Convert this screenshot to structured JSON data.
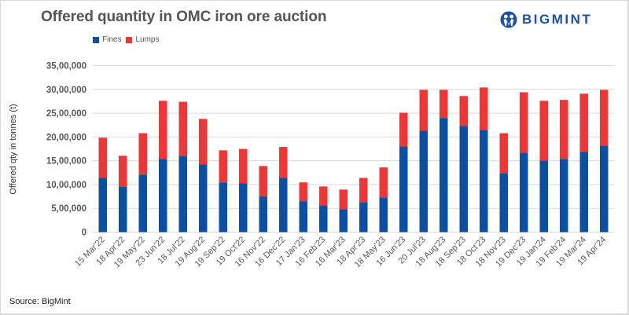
{
  "header": {
    "title": "Offered quantity in OMC iron ore auction",
    "logo_text": "BIGMINT",
    "logo_icon": "bigmint-people-icon"
  },
  "footer": {
    "source": "Source: BigMint"
  },
  "colors": {
    "fines": "#0a4fa3",
    "lumps": "#ee3636",
    "grid": "#d9d9d9",
    "logo": "#1f4fa3"
  },
  "chart_data": {
    "type": "bar",
    "stacked": true,
    "title": "Offered quantity in OMC iron ore auction",
    "xlabel": "",
    "ylabel": "Offered qty in tonnes (t)",
    "ylim": [
      0,
      3500000
    ],
    "yticks": [
      0,
      500000,
      1000000,
      1500000,
      2000000,
      2500000,
      3000000,
      3500000
    ],
    "ytick_labels": [
      "0",
      "5,00,000",
      "10,00,000",
      "15,00,000",
      "20,00,000",
      "25,00,000",
      "30,00,000",
      "35,00,000"
    ],
    "grid": true,
    "legend": {
      "placement": "top-left",
      "entries": [
        "Fines",
        "Lumps"
      ]
    },
    "categories": [
      "15 Mar'22",
      "18 Apr'22",
      "19 May'22",
      "23 Jun'22",
      "18 Jul'22",
      "19 Aug'22",
      "19 Sep'22",
      "19 Oct'22",
      "16 Nov'22",
      "16 Dec'22",
      "17 Jan'23",
      "16 Feb'23",
      "16 Mar'23",
      "18 Apr'23",
      "18 May'23",
      "16 Jun'23",
      "20 Jul'23",
      "18 Aug'23",
      "18 Sep'23",
      "18 Oct'23",
      "18 Nov'23",
      "19 Dec'23",
      "19 Jan'24",
      "19 Feb'24",
      "19 Mar'24",
      "19 Apr'24"
    ],
    "series": [
      {
        "name": "Fines",
        "values": [
          1140000,
          950000,
          1210000,
          1540000,
          1605000,
          1420000,
          1045000,
          1030000,
          750000,
          1140000,
          650000,
          565000,
          480000,
          630000,
          730000,
          1800000,
          2130000,
          2400000,
          2230000,
          2150000,
          1240000,
          1670000,
          1505000,
          1540000,
          1690000,
          1820000
        ]
      },
      {
        "name": "Lumps",
        "values": [
          845000,
          655000,
          870000,
          1220000,
          1135000,
          960000,
          675000,
          720000,
          640000,
          650000,
          395000,
          395000,
          415000,
          510000,
          630000,
          710000,
          860000,
          590000,
          630000,
          890000,
          840000,
          1270000,
          1255000,
          1240000,
          1220000,
          1170000
        ]
      }
    ]
  }
}
